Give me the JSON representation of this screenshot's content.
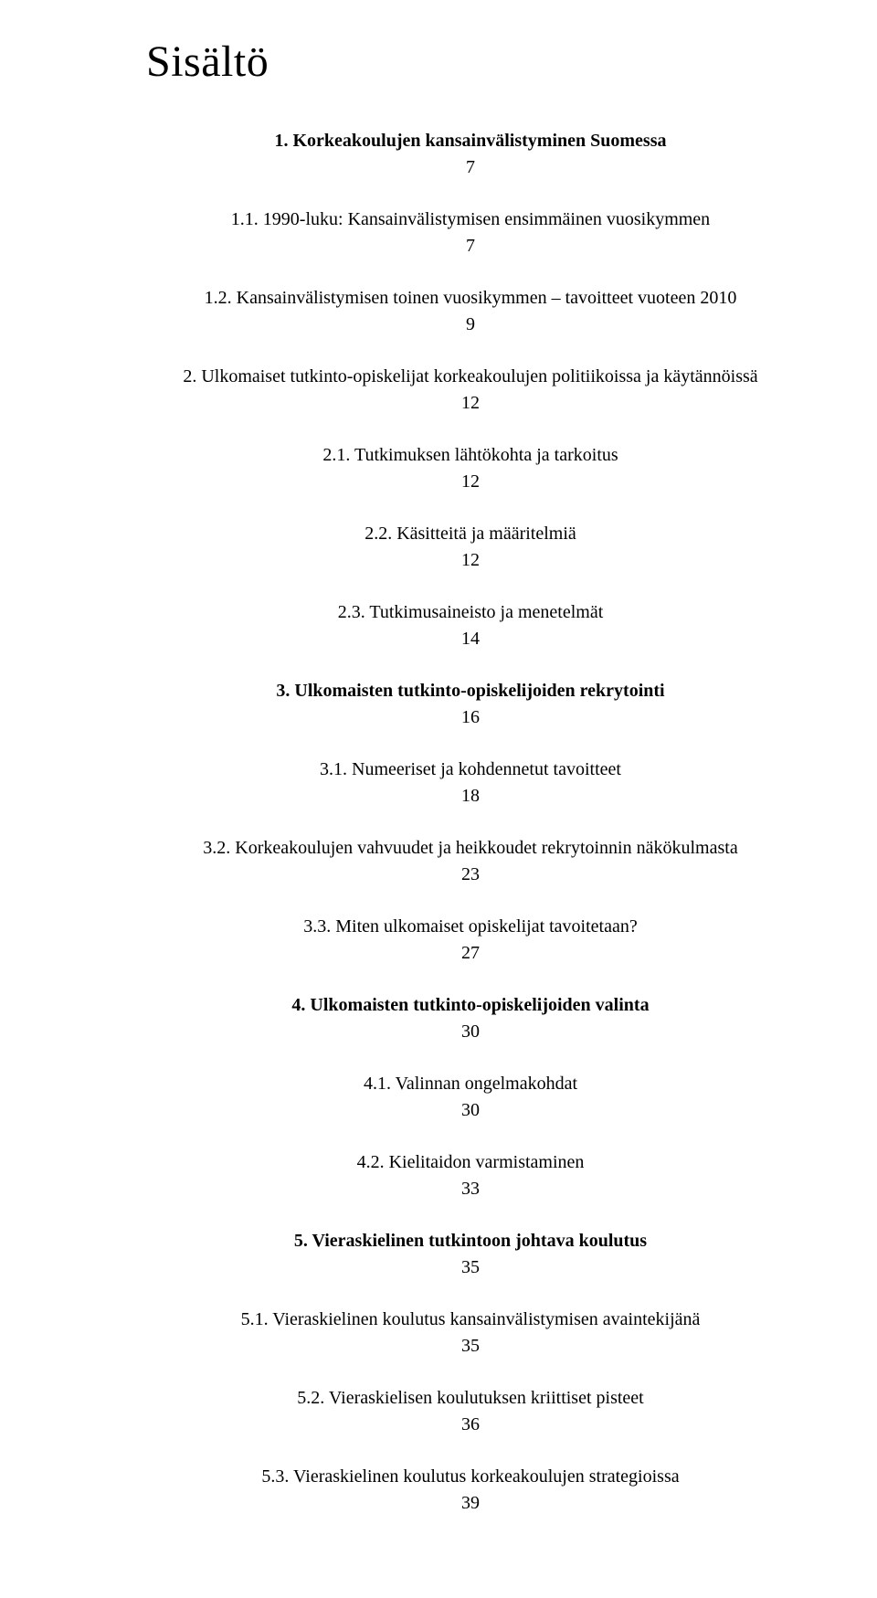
{
  "title": "Sisältö",
  "entries": [
    {
      "label": "1. Korkeakoulujen kansainvälistyminen Suomessa",
      "page": "7",
      "bold": true
    },
    {
      "label": "1.1. 1990-luku: Kansainvälistymisen ensimmäinen vuosikymmen",
      "page": "7",
      "bold": false
    },
    {
      "label": "1.2. Kansainvälistymisen toinen vuosikymmen – tavoitteet vuoteen 2010",
      "page": "9",
      "bold": false
    },
    {
      "label": "2. Ulkomaiset tutkinto-opiskelijat korkeakoulujen politiikoissa ja käytännöissä",
      "page": "12",
      "bold": false
    },
    {
      "label": "2.1. Tutkimuksen lähtökohta ja tarkoitus",
      "page": "12",
      "bold": false
    },
    {
      "label": "2.2. Käsitteitä ja määritelmiä",
      "page": "12",
      "bold": false
    },
    {
      "label": "2.3. Tutkimusaineisto ja menetelmät",
      "page": "14",
      "bold": false
    },
    {
      "label": "3. Ulkomaisten tutkinto-opiskelijoiden rekrytointi",
      "page": "16",
      "bold": true
    },
    {
      "label": "3.1. Numeeriset ja kohdennetut tavoitteet",
      "page": "18",
      "bold": false
    },
    {
      "label": "3.2. Korkeakoulujen vahvuudet ja heikkoudet rekrytoinnin näkökulmasta",
      "page": "23",
      "bold": false
    },
    {
      "label": "3.3. Miten ulkomaiset opiskelijat tavoitetaan?",
      "page": "27",
      "bold": false
    },
    {
      "label": "4. Ulkomaisten tutkinto-opiskelijoiden valinta",
      "page": "30",
      "bold": true
    },
    {
      "label": "4.1. Valinnan ongelmakohdat",
      "page": "30",
      "bold": false
    },
    {
      "label": "4.2. Kielitaidon varmistaminen",
      "page": "33",
      "bold": false
    },
    {
      "label": "5. Vieraskielinen tutkintoon johtava koulutus",
      "page": "35",
      "bold": true
    },
    {
      "label": "5.1. Vieraskielinen koulutus kansainvälistymisen avaintekijänä",
      "page": "35",
      "bold": false
    },
    {
      "label": "5.2. Vieraskielisen koulutuksen kriittiset pisteet",
      "page": "36",
      "bold": false
    },
    {
      "label": "5.3. Vieraskielinen koulutus korkeakoulujen strategioissa",
      "page": "39",
      "bold": false
    }
  ]
}
